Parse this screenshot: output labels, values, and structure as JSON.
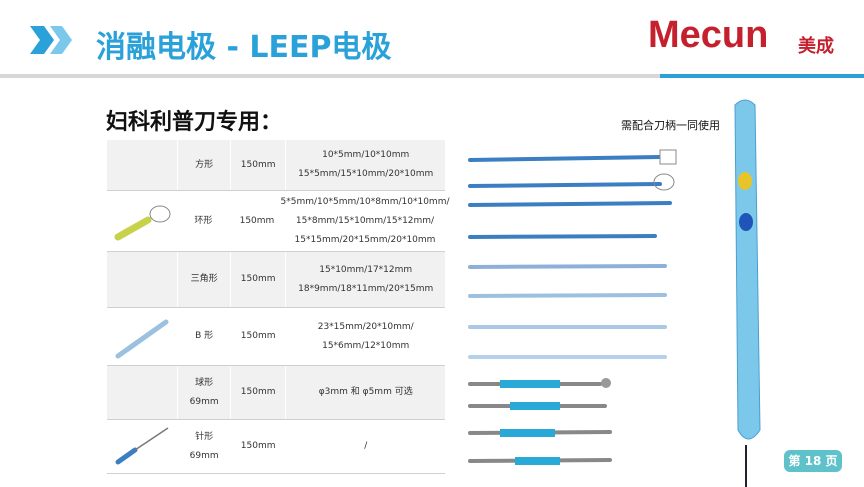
{
  "header": {
    "title": "消融电极 - LEEP电极",
    "logo": "Mecun",
    "logo_cn": "美成"
  },
  "subtitle": "妇科利普刀专用：",
  "note": "需配合刀柄一同使用",
  "table": {
    "rows": [
      {
        "name": [
          "方形"
        ],
        "length": "150mm",
        "specs": [
          "10*5mm/10*10mm",
          "15*5mm/15*10mm/20*10mm"
        ]
      },
      {
        "name": [
          "环形"
        ],
        "length": "150mm",
        "specs": [
          "5*5mm/10*5mm/10*8mm/10*10mm/",
          "15*8mm/15*10mm/15*12mm/",
          "15*15mm/20*15mm/20*10mm"
        ]
      },
      {
        "name": [
          "三角形"
        ],
        "length": "150mm",
        "specs": [
          "15*10mm/17*12mm",
          "18*9mm/18*11mm/20*15mm"
        ]
      },
      {
        "name": [
          "B 形"
        ],
        "length": "150mm",
        "specs": [
          "23*15mm/20*10mm/",
          "15*6mm/12*10mm"
        ]
      },
      {
        "name": [
          "球形",
          "69mm"
        ],
        "length": "150mm",
        "specs": [
          "φ3mm 和 φ5mm 可选"
        ]
      },
      {
        "name": [
          "针形",
          "69mm"
        ],
        "length": "150mm",
        "specs": [
          "/"
        ]
      }
    ]
  },
  "page_number": "第 18 页"
}
